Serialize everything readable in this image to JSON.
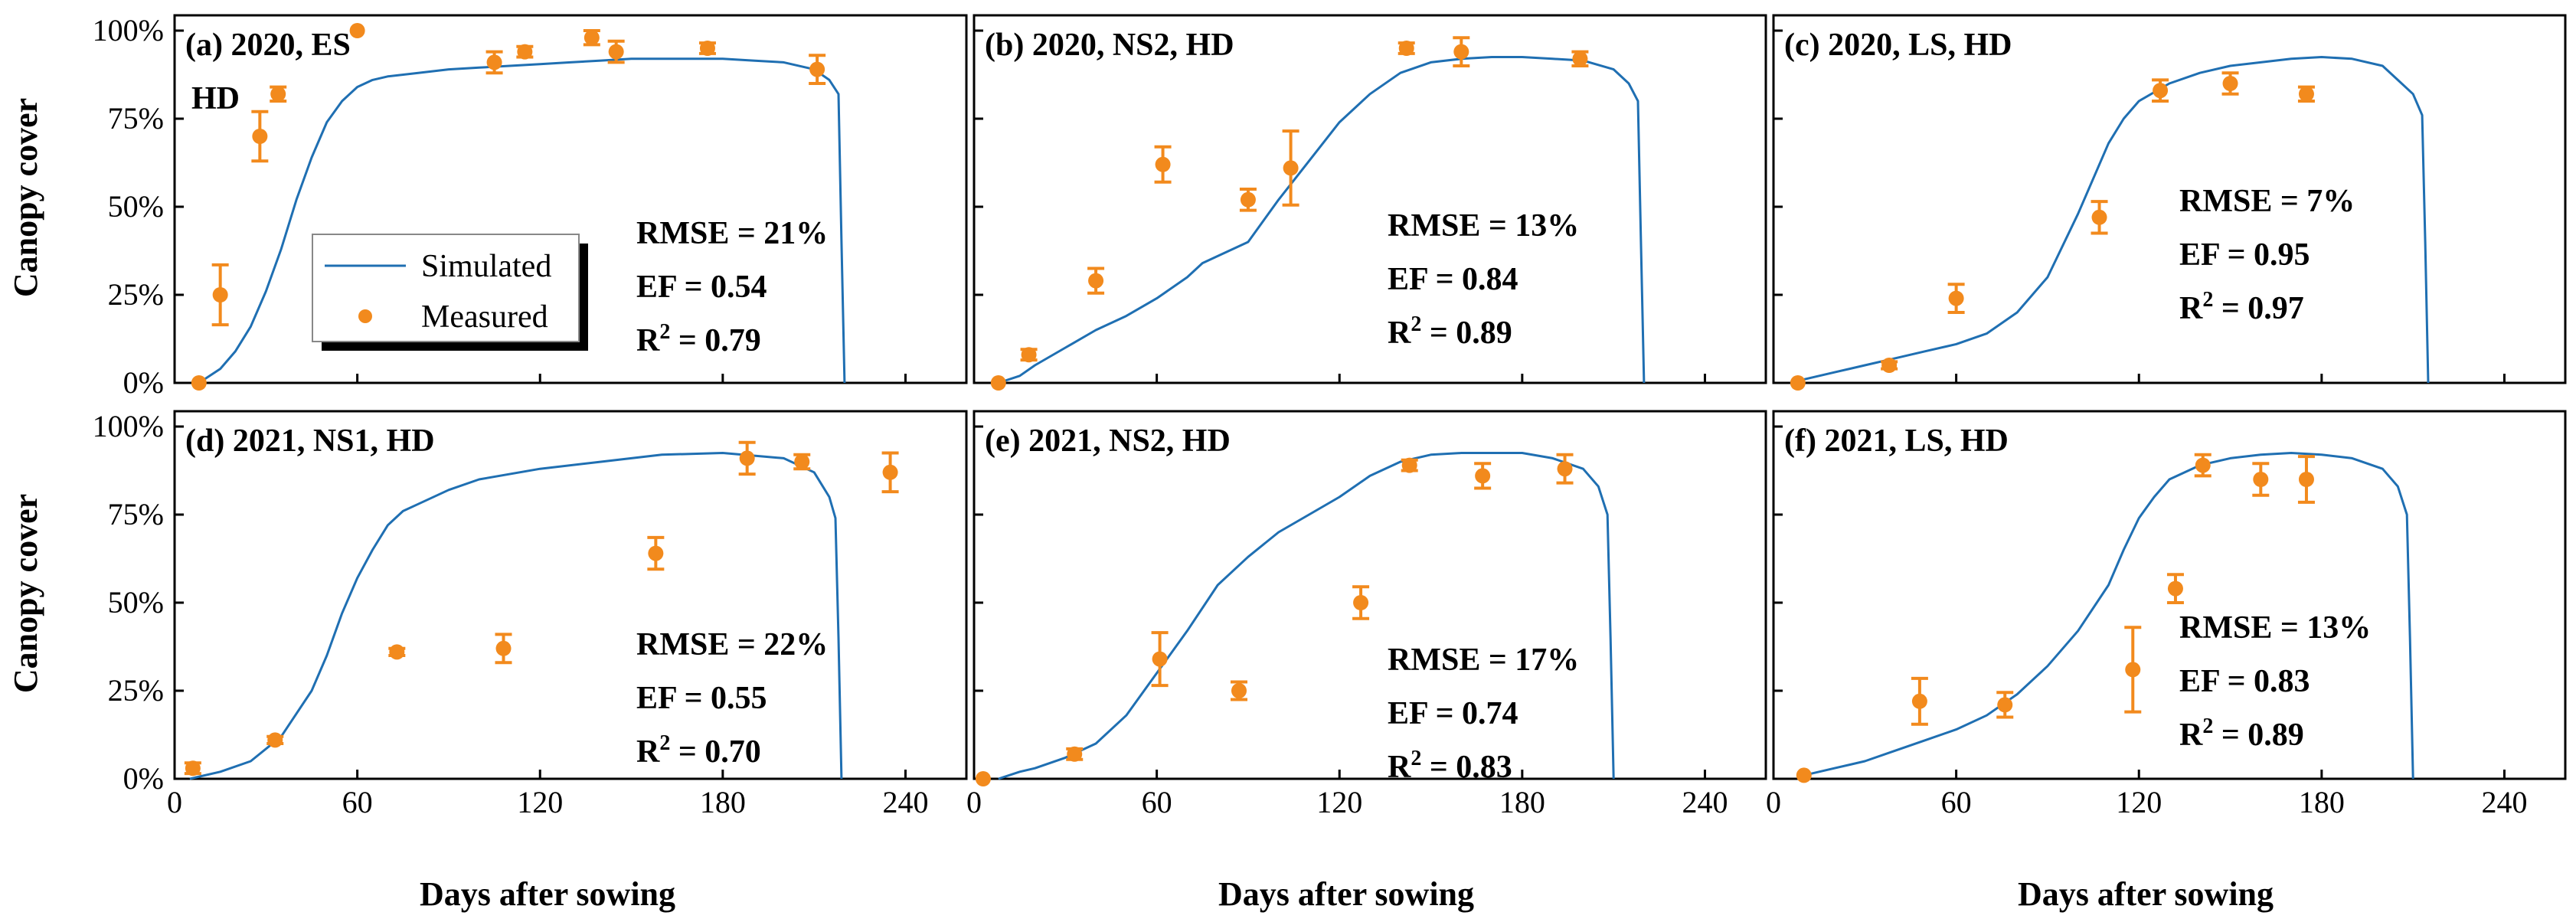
{
  "colors": {
    "simulated": "#1f6fb2",
    "measured": "#f28a1d",
    "frame": "#000000"
  },
  "legend": {
    "simulated": "Simulated",
    "measured": "Measured"
  },
  "chart_data": {
    "type": "scatter",
    "xlabel": "Days after sowing",
    "ylabel": "Canopy cover",
    "xlim": [
      0,
      260
    ],
    "ylim": [
      0,
      100
    ],
    "x_ticks": [
      "0",
      "60",
      "120",
      "180",
      "240"
    ],
    "y_ticks": [
      "0%",
      "25%",
      "50%",
      "75%",
      "100%"
    ],
    "panels": [
      {
        "label": "(a) 2020, ES",
        "label2": "HD",
        "stats": {
          "rmse": "RMSE = 21%",
          "ef": "EF = 0.54",
          "r2_prefix": "R",
          "r2_sup": "2",
          "r2_value": " = 0.79"
        },
        "simulated": {
          "x": [
            8,
            15,
            20,
            25,
            30,
            35,
            40,
            45,
            50,
            55,
            60,
            65,
            70,
            80,
            90,
            100,
            110,
            120,
            130,
            140,
            150,
            160,
            170,
            180,
            190,
            200,
            210,
            215,
            218,
            219,
            220
          ],
          "y": [
            0,
            4,
            9,
            16,
            26,
            38,
            52,
            64,
            74,
            80,
            84,
            86,
            87,
            88,
            89,
            89.5,
            90,
            90.5,
            91,
            91.5,
            92,
            92,
            92,
            92,
            91.5,
            91,
            89,
            86,
            82,
            40,
            0
          ]
        },
        "measured": {
          "x": [
            8,
            15,
            28,
            34,
            60,
            105,
            115,
            137,
            145,
            175,
            211
          ],
          "y": [
            0,
            25,
            70,
            82,
            100,
            91,
            94,
            98,
            94,
            95,
            89
          ],
          "err": [
            0,
            8.5,
            7,
            2,
            0,
            3,
            1.5,
            2,
            3,
            1.5,
            4
          ]
        }
      },
      {
        "label": "(b) 2020, NS2, HD",
        "stats": {
          "rmse": "RMSE = 13%",
          "ef": "EF = 0.84",
          "r2_prefix": "R",
          "r2_sup": "2",
          "r2_value": " = 0.89"
        },
        "simulated": {
          "x": [
            8,
            15,
            20,
            30,
            40,
            50,
            60,
            70,
            75,
            80,
            90,
            100,
            110,
            120,
            130,
            140,
            150,
            160,
            170,
            180,
            190,
            200,
            210,
            215,
            218,
            219,
            220
          ],
          "y": [
            0,
            2,
            5,
            10,
            15,
            19,
            24,
            30,
            34,
            36,
            40,
            52,
            63,
            74,
            82,
            88,
            91,
            92,
            92.5,
            92.5,
            92,
            91.5,
            89,
            85,
            80,
            40,
            0
          ]
        },
        "measured": {
          "x": [
            8,
            18,
            40,
            62,
            90,
            104,
            142,
            160,
            199
          ],
          "y": [
            0,
            8,
            29,
            62,
            52,
            61,
            95,
            94,
            92
          ],
          "err": [
            0,
            1.5,
            3.5,
            5,
            3,
            10.5,
            1.5,
            4,
            2
          ]
        }
      },
      {
        "label": "(c) 2020, LS, HD",
        "stats": {
          "rmse": "RMSE = 7%",
          "ef": "EF = 0.95",
          "r2_prefix": "R",
          "r2_sup": "2",
          "r2_value": " = 0.97"
        },
        "simulated": {
          "x": [
            10,
            20,
            30,
            40,
            50,
            60,
            70,
            80,
            90,
            100,
            110,
            115,
            120,
            130,
            140,
            150,
            160,
            170,
            180,
            190,
            200,
            205,
            210,
            213,
            214,
            215
          ],
          "y": [
            1,
            3,
            5,
            7,
            9,
            11,
            14,
            20,
            30,
            48,
            68,
            75,
            80,
            85,
            88,
            90,
            91,
            92,
            92.5,
            92,
            90,
            86,
            82,
            76,
            40,
            0
          ]
        },
        "measured": {
          "x": [
            8,
            38,
            60,
            107,
            127,
            150,
            175
          ],
          "y": [
            0,
            5,
            24,
            47,
            83,
            85,
            82
          ],
          "err": [
            0,
            1,
            4,
            4.5,
            3,
            3,
            2
          ]
        }
      },
      {
        "label": "(d) 2021,  NS1, HD",
        "stats": {
          "rmse": "RMSE = 22%",
          "ef": "EF = 0.55",
          "r2_prefix": "R",
          "r2_sup": "2",
          "r2_value": " = 0.70"
        },
        "simulated": {
          "x": [
            5,
            15,
            25,
            35,
            45,
            50,
            55,
            60,
            65,
            70,
            75,
            80,
            90,
            100,
            120,
            140,
            160,
            180,
            200,
            210,
            215,
            217,
            218,
            219
          ],
          "y": [
            0,
            2,
            5,
            12,
            25,
            35,
            47,
            57,
            65,
            72,
            76,
            78,
            82,
            85,
            88,
            90,
            92,
            92.5,
            91,
            87,
            80,
            74,
            40,
            0
          ]
        },
        "measured": {
          "x": [
            6,
            33,
            73,
            108,
            158,
            188,
            206,
            235
          ],
          "y": [
            3,
            11,
            36,
            37,
            64,
            91,
            90,
            87
          ],
          "err": [
            1.5,
            1,
            1,
            4,
            4.5,
            4.5,
            2,
            5.5
          ]
        }
      },
      {
        "label": "(e) 2021, NS2, HD",
        "stats": {
          "rmse": "RMSE = 17%",
          "ef": "EF = 0.74",
          "r2_prefix": "R",
          "r2_sup": "2",
          "r2_value": " = 0.83"
        },
        "simulated": {
          "x": [
            8,
            15,
            20,
            30,
            40,
            50,
            60,
            70,
            80,
            90,
            100,
            110,
            120,
            130,
            140,
            150,
            160,
            170,
            180,
            190,
            200,
            205,
            208,
            209,
            210
          ],
          "y": [
            0,
            2,
            3,
            6,
            10,
            18,
            30,
            42,
            55,
            63,
            70,
            75,
            80,
            86,
            90,
            92,
            92.5,
            92.5,
            92.5,
            91,
            88,
            83,
            75,
            40,
            0
          ]
        },
        "measured": {
          "x": [
            3,
            33,
            61,
            87,
            127,
            143,
            167,
            194
          ],
          "y": [
            0,
            7,
            34,
            25,
            50,
            89,
            86,
            88
          ],
          "err": [
            0,
            1.5,
            7.5,
            2.5,
            4.5,
            1.5,
            3.5,
            4
          ]
        }
      },
      {
        "label": "(f) 2021, LS, HD",
        "stats": {
          "rmse": "RMSE = 13%",
          "ef": "EF = 0.83",
          "r2_prefix": "R",
          "r2_sup": "2",
          "r2_value": " = 0.89"
        },
        "simulated": {
          "x": [
            10,
            20,
            30,
            40,
            50,
            60,
            70,
            80,
            90,
            100,
            110,
            115,
            120,
            125,
            130,
            140,
            150,
            160,
            170,
            180,
            190,
            200,
            205,
            208,
            209,
            210
          ],
          "y": [
            1,
            3,
            5,
            8,
            11,
            14,
            18,
            24,
            32,
            42,
            55,
            65,
            74,
            80,
            85,
            89,
            91,
            92,
            92.5,
            92,
            91,
            88,
            83,
            75,
            40,
            0
          ]
        },
        "measured": {
          "x": [
            10,
            48,
            76,
            118,
            132,
            141,
            160,
            175
          ],
          "y": [
            1,
            22,
            21,
            31,
            54,
            89,
            85,
            85
          ],
          "err": [
            0.5,
            6.5,
            3.5,
            12,
            4,
            3,
            4.5,
            6.5
          ]
        }
      }
    ]
  }
}
